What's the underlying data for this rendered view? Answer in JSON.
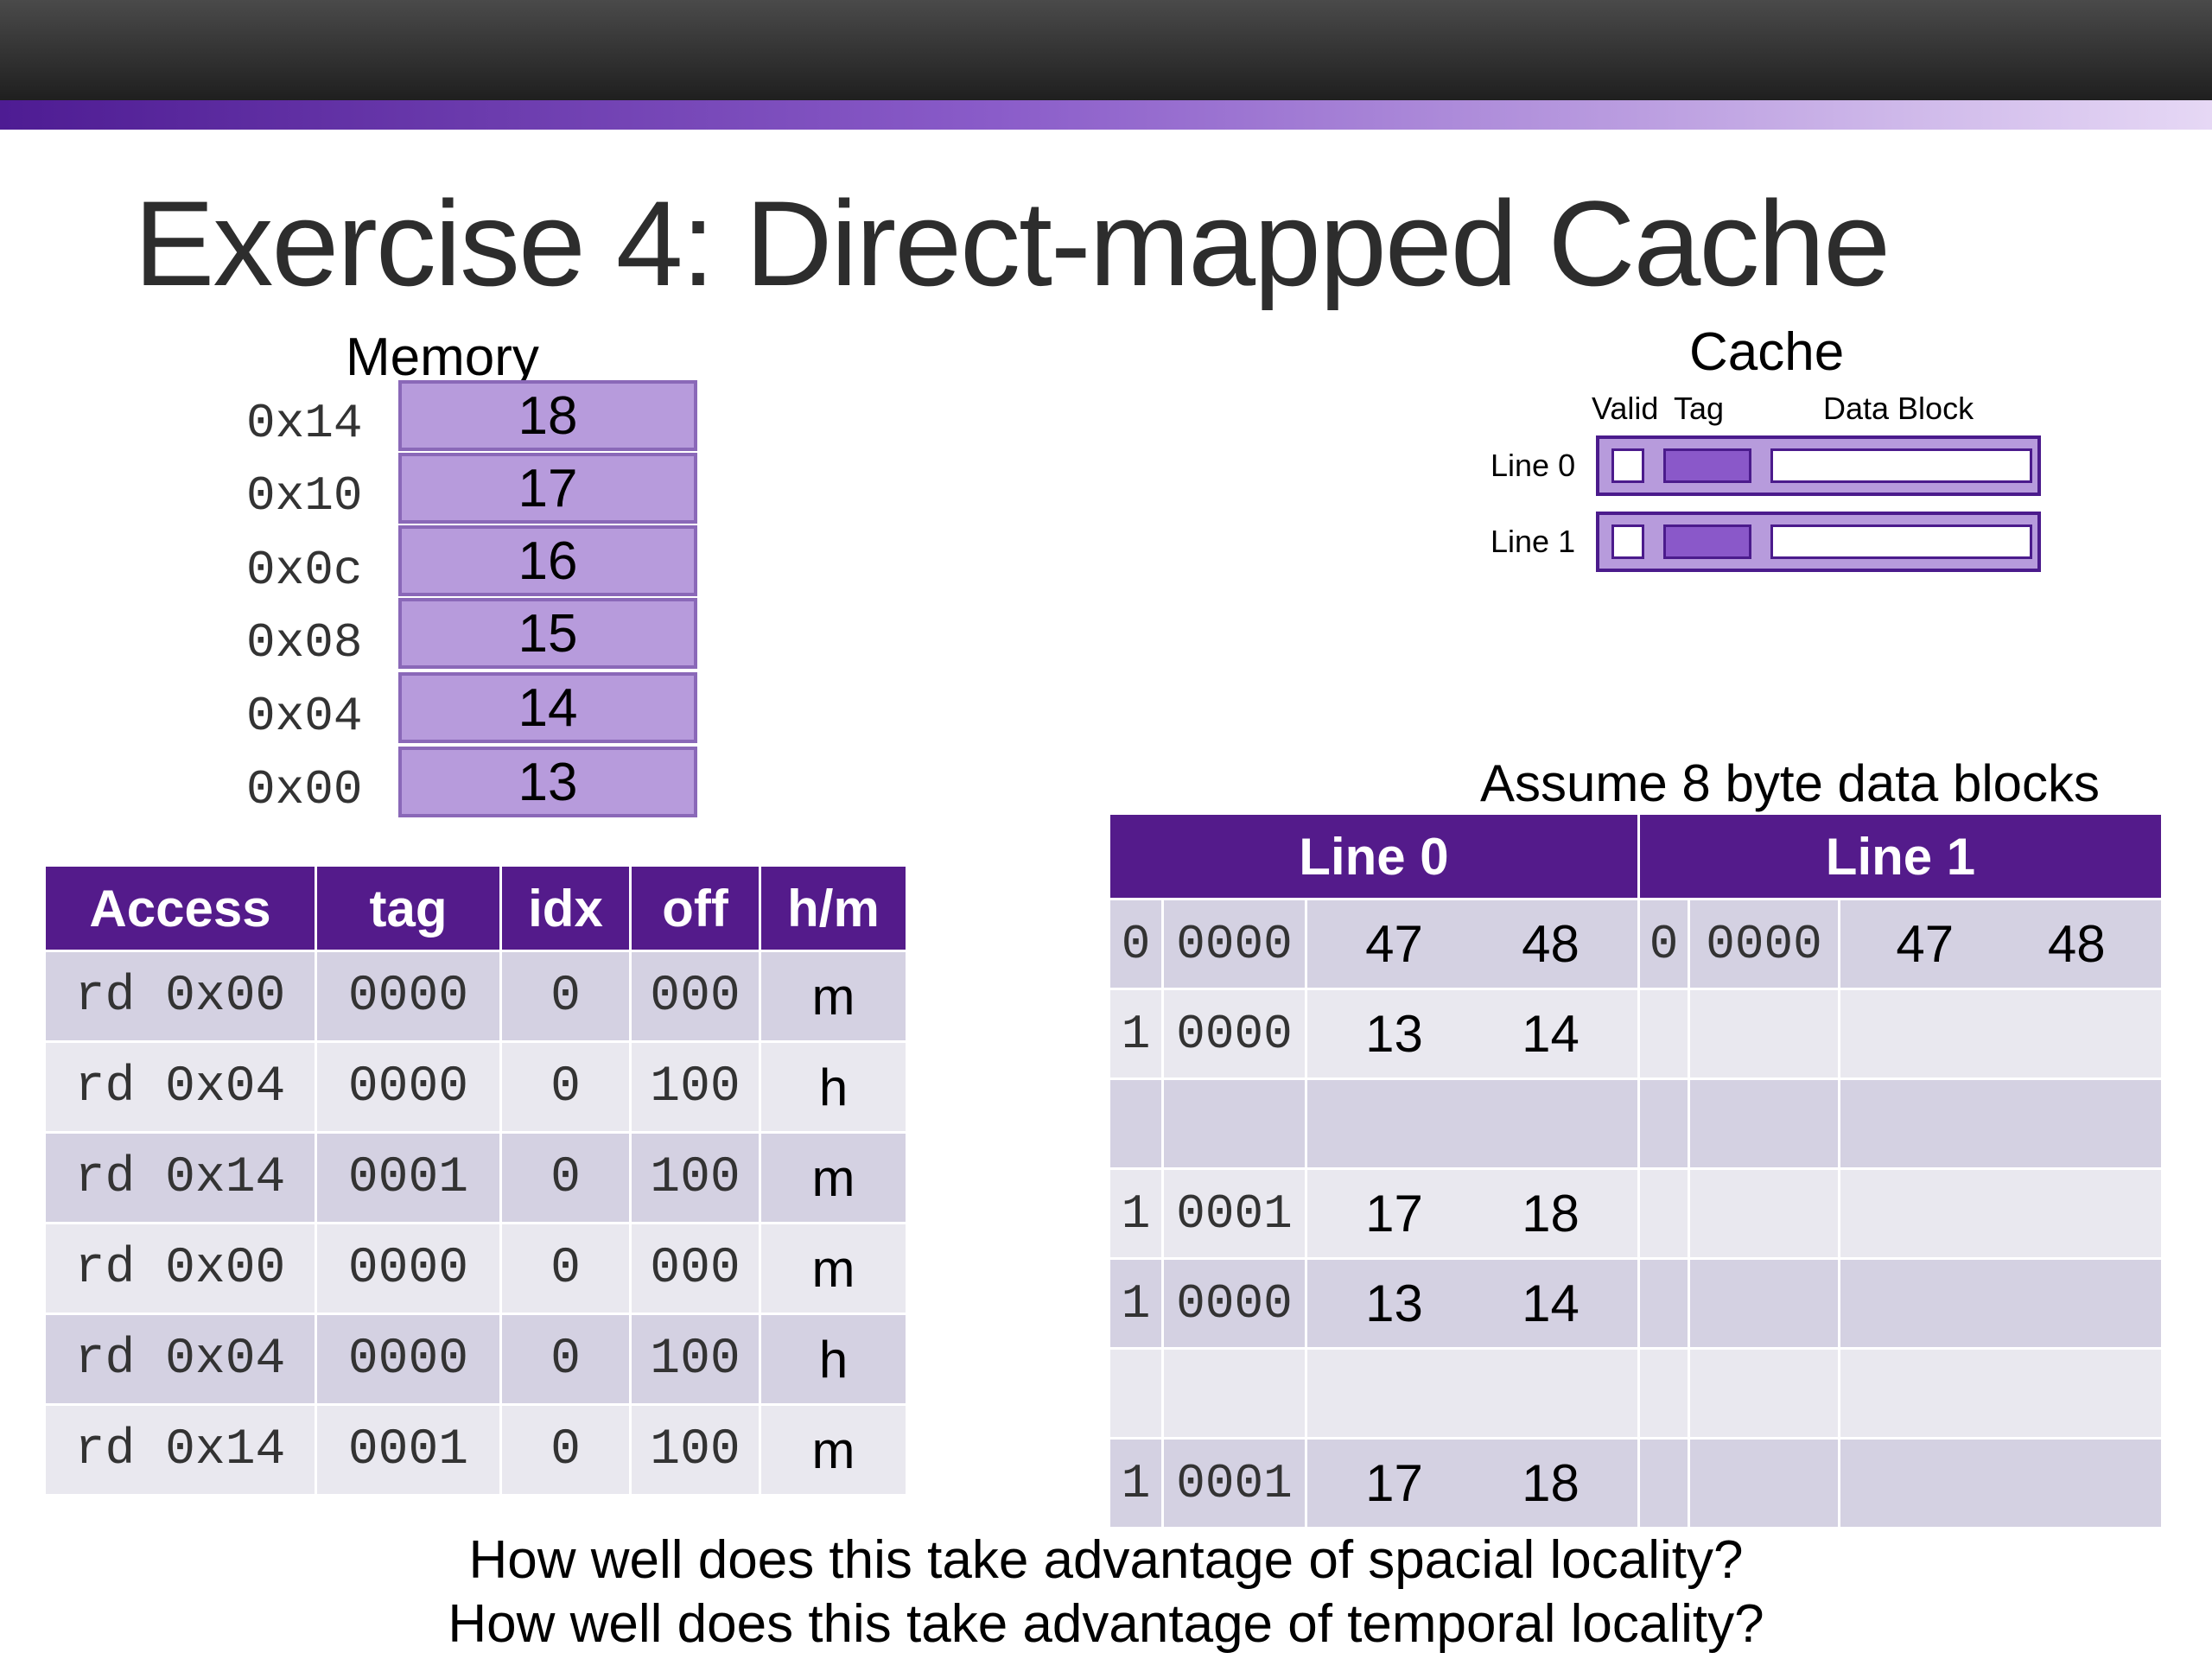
{
  "title": "Exercise 4: Direct-mapped Cache",
  "memory": {
    "label": "Memory",
    "rows": [
      {
        "addr": "0x14",
        "value": "18"
      },
      {
        "addr": "0x10",
        "value": "17"
      },
      {
        "addr": "0x0c",
        "value": "16"
      },
      {
        "addr": "0x08",
        "value": "15"
      },
      {
        "addr": "0x04",
        "value": "14"
      },
      {
        "addr": "0x00",
        "value": "13"
      }
    ]
  },
  "cache_diagram": {
    "label": "Cache",
    "headers": {
      "valid": "Valid",
      "tag": "Tag",
      "data": "Data Block"
    },
    "lines": [
      "Line 0",
      "Line 1"
    ]
  },
  "assume_text": "Assume 8 byte data blocks",
  "access_table": {
    "headers": [
      "Access",
      "tag",
      "idx",
      "off",
      "h/m"
    ],
    "rows": [
      [
        "rd 0x00",
        "0000",
        "0",
        "000",
        "m"
      ],
      [
        "rd 0x04",
        "0000",
        "0",
        "100",
        "h"
      ],
      [
        "rd 0x14",
        "0001",
        "0",
        "100",
        "m"
      ],
      [
        "rd 0x00",
        "0000",
        "0",
        "000",
        "m"
      ],
      [
        "rd 0x04",
        "0000",
        "0",
        "100",
        "h"
      ],
      [
        "rd 0x14",
        "0001",
        "0",
        "100",
        "m"
      ]
    ]
  },
  "cache_table": {
    "headers": [
      "Line 0",
      "Line 1"
    ],
    "rows": [
      {
        "l0": {
          "v": "0",
          "tag": "0000",
          "d1": "47",
          "d2": "48"
        },
        "l1": {
          "v": "0",
          "tag": "0000",
          "d1": "47",
          "d2": "48"
        }
      },
      {
        "l0": {
          "v": "1",
          "tag": "0000",
          "d1": "13",
          "d2": "14"
        },
        "l1": {
          "v": "",
          "tag": "",
          "d1": "",
          "d2": ""
        }
      },
      {
        "l0": {
          "v": "",
          "tag": "",
          "d1": "",
          "d2": ""
        },
        "l1": {
          "v": "",
          "tag": "",
          "d1": "",
          "d2": ""
        }
      },
      {
        "l0": {
          "v": "1",
          "tag": "0001",
          "d1": "17",
          "d2": "18"
        },
        "l1": {
          "v": "",
          "tag": "",
          "d1": "",
          "d2": ""
        }
      },
      {
        "l0": {
          "v": "1",
          "tag": "0000",
          "d1": "13",
          "d2": "14"
        },
        "l1": {
          "v": "",
          "tag": "",
          "d1": "",
          "d2": ""
        }
      },
      {
        "l0": {
          "v": "",
          "tag": "",
          "d1": "",
          "d2": ""
        },
        "l1": {
          "v": "",
          "tag": "",
          "d1": "",
          "d2": ""
        }
      },
      {
        "l0": {
          "v": "1",
          "tag": "0001",
          "d1": "17",
          "d2": "18"
        },
        "l1": {
          "v": "",
          "tag": "",
          "d1": "",
          "d2": ""
        }
      }
    ]
  },
  "questions": [
    "How well does this take advantage of spacial locality?",
    "How well does this take advantage of temporal locality?"
  ]
}
